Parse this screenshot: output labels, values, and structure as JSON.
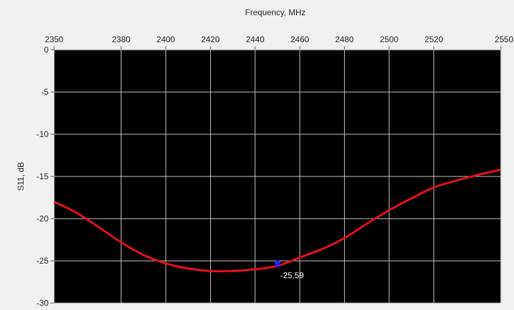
{
  "chart_data": {
    "type": "line",
    "xlabel": "Frequency, MHz",
    "ylabel": "S11, dB",
    "xlim": [
      2350,
      2550
    ],
    "ylim": [
      -30,
      0
    ],
    "x_ticks": [
      2350,
      2380,
      2400,
      2420,
      2440,
      2460,
      2480,
      2500,
      2520,
      2550
    ],
    "y_ticks": [
      0,
      -5,
      -10,
      -15,
      -20,
      -25,
      -30
    ],
    "x_axis_position": "top",
    "grid": true,
    "plot_background": "#000000",
    "grid_color": "#c8c8c8",
    "series": [
      {
        "color": "#e8101c",
        "x": [
          2350,
          2360,
          2370,
          2380,
          2390,
          2400,
          2410,
          2420,
          2430,
          2440,
          2450,
          2460,
          2470,
          2480,
          2490,
          2500,
          2510,
          2520,
          2530,
          2540,
          2550
        ],
        "y": [
          -18.0,
          -19.3,
          -21.0,
          -22.8,
          -24.3,
          -25.3,
          -25.9,
          -26.2,
          -26.2,
          -26.0,
          -25.6,
          -24.6,
          -23.6,
          -22.3,
          -20.6,
          -19.0,
          -17.6,
          -16.3,
          -15.5,
          -14.8,
          -14.2
        ]
      }
    ],
    "marker": {
      "x": 2450,
      "y": -25.59,
      "label": "-25.59",
      "color": "#2020ff"
    }
  }
}
